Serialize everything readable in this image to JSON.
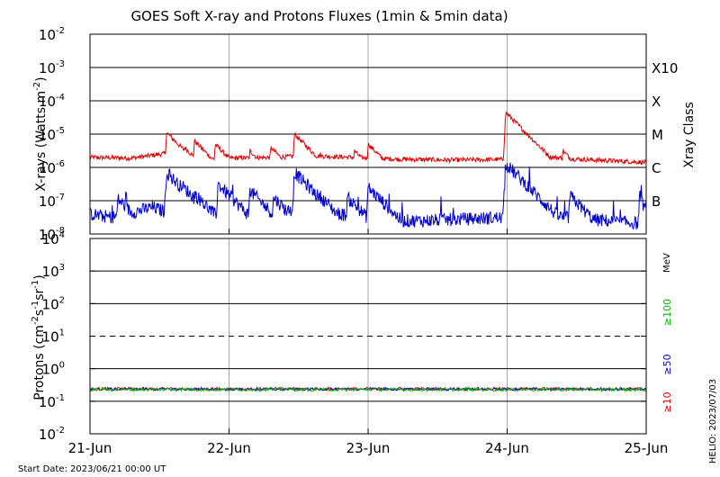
{
  "title": "GOES Soft X-ray and Protons Fluxes   (1min & 5min data)",
  "footer_start": "Start Date: 2023/06/21 00:00 UT",
  "footer_helio": "HELIO: 2023/07/03",
  "colors": {
    "red": "#dd0000",
    "blue": "#0000cc",
    "green": "#00bb00",
    "grid": "#aaaaaa"
  },
  "chart_data": [
    {
      "type": "line",
      "name": "xrays",
      "ylabel_pre": "X-rays (Watts m",
      "ylabel_sup": "-2",
      "ylabel_post": ")",
      "y_scale": "log",
      "ylim_exp": [
        -8,
        -2
      ],
      "y_ticks": [
        {
          "base": "10",
          "exp": "-8"
        },
        {
          "base": "10",
          "exp": "-7"
        },
        {
          "base": "10",
          "exp": "-6"
        },
        {
          "base": "10",
          "exp": "-5"
        },
        {
          "base": "10",
          "exp": "-4"
        },
        {
          "base": "10",
          "exp": "-3"
        },
        {
          "base": "10",
          "exp": "-2"
        }
      ],
      "right_label": "Xray Class",
      "classes": [
        {
          "label": "B",
          "exp": -7
        },
        {
          "label": "C",
          "exp": -6
        },
        {
          "label": "M",
          "exp": -5
        },
        {
          "label": "X",
          "exp": -4
        },
        {
          "label": "X10",
          "exp": -3
        }
      ],
      "series": [
        {
          "color": "red",
          "baseline": [
            [
              0,
              -5.7
            ],
            [
              0.3,
              -5.72
            ],
            [
              0.6,
              -5.55
            ],
            [
              0.85,
              -5.75
            ],
            [
              1.0,
              -5.72
            ],
            [
              1.3,
              -5.7
            ],
            [
              1.6,
              -5.65
            ],
            [
              1.9,
              -5.7
            ],
            [
              2.2,
              -5.75
            ],
            [
              2.6,
              -5.78
            ],
            [
              2.99,
              -5.76
            ],
            [
              3.0,
              -5.5
            ],
            [
              3.2,
              -5.65
            ],
            [
              3.5,
              -5.75
            ],
            [
              4.0,
              -5.85
            ],
            [
              4.5,
              -5.82
            ],
            [
              4.8,
              -5.8
            ],
            [
              5.0,
              -5.85
            ]
          ],
          "flares": [
            [
              0.55,
              -4.95
            ],
            [
              0.68,
              -5.4
            ],
            [
              0.75,
              -5.2
            ],
            [
              0.9,
              -5.3
            ],
            [
              1.15,
              -5.5
            ],
            [
              1.3,
              -5.4
            ],
            [
              1.47,
              -5.0
            ],
            [
              1.55,
              -5.35
            ],
            [
              1.65,
              -5.6
            ],
            [
              1.9,
              -5.5
            ],
            [
              2.0,
              -5.3
            ],
            [
              2.99,
              -4.35
            ],
            [
              3.12,
              -5.4
            ],
            [
              3.4,
              -5.5
            ],
            [
              4.2,
              -5.6
            ],
            [
              4.45,
              -5.5
            ],
            [
              4.53,
              -4.95
            ],
            [
              4.72,
              -5.3
            ],
            [
              4.85,
              -5.4
            ]
          ],
          "noise": 0.07
        },
        {
          "color": "blue",
          "baseline": [
            [
              0,
              -7.4
            ],
            [
              0.15,
              -7.5
            ],
            [
              0.35,
              -7.3
            ],
            [
              0.45,
              -7.2
            ],
            [
              0.7,
              -7.55
            ],
            [
              1.0,
              -7.6
            ],
            [
              1.2,
              -7.5
            ],
            [
              1.4,
              -7.3
            ],
            [
              1.6,
              -7.2
            ],
            [
              1.8,
              -7.4
            ],
            [
              2.1,
              -7.6
            ],
            [
              2.4,
              -7.6
            ],
            [
              2.7,
              -7.55
            ],
            [
              2.99,
              -7.5
            ],
            [
              3.0,
              -6.8
            ],
            [
              3.2,
              -7.2
            ],
            [
              3.4,
              -7.5
            ],
            [
              3.7,
              -7.6
            ],
            [
              4.0,
              -7.7
            ],
            [
              4.3,
              -7.6
            ],
            [
              4.5,
              -7.5
            ],
            [
              4.8,
              -7.4
            ],
            [
              5.0,
              -7.45
            ]
          ],
          "flares": [
            [
              0.2,
              -6.95
            ],
            [
              0.55,
              -6.15
            ],
            [
              0.65,
              -6.5
            ],
            [
              0.75,
              -6.8
            ],
            [
              0.92,
              -6.5
            ],
            [
              1.15,
              -6.7
            ],
            [
              1.32,
              -6.9
            ],
            [
              1.47,
              -6.15
            ],
            [
              1.55,
              -6.5
            ],
            [
              1.65,
              -6.85
            ],
            [
              1.85,
              -6.9
            ],
            [
              2.0,
              -6.6
            ],
            [
              2.99,
              -5.9
            ],
            [
              3.12,
              -6.9
            ],
            [
              3.45,
              -6.85
            ],
            [
              3.95,
              -7.0
            ],
            [
              4.25,
              -6.8
            ],
            [
              4.4,
              -6.5
            ],
            [
              4.53,
              -6.2
            ],
            [
              4.65,
              -6.9
            ],
            [
              4.85,
              -6.8
            ]
          ],
          "noise": 0.2
        }
      ]
    },
    {
      "type": "line",
      "name": "protons",
      "ylabel_pre": "Protons (cm",
      "ylabel_sup1": "-2",
      "ylabel_mid": "s",
      "ylabel_sup2": "-1",
      "ylabel_mid2": "sr",
      "ylabel_sup3": "-1",
      "ylabel_post": ")",
      "y_scale": "log",
      "ylim_exp": [
        -2,
        4
      ],
      "y_ticks": [
        {
          "base": "10",
          "exp": "-2"
        },
        {
          "base": "10",
          "exp": "-1"
        },
        {
          "base": "10",
          "exp": "0"
        },
        {
          "base": "10",
          "exp": "1"
        },
        {
          "base": "10",
          "exp": "2"
        },
        {
          "base": "10",
          "exp": "3"
        },
        {
          "base": "10",
          "exp": "4"
        }
      ],
      "threshold_exp": 1,
      "unit_label": "MeV",
      "energy_labels": [
        {
          "text": "≥100",
          "color": "green"
        },
        {
          "text": "≥50",
          "color": "blue"
        },
        {
          "text": "≥10",
          "color": "red"
        }
      ],
      "series": [
        {
          "color": "red",
          "level": -0.62,
          "noise": 0.05
        },
        {
          "color": "blue",
          "level": -0.63,
          "noise": 0.04
        },
        {
          "color": "green",
          "level": -0.64,
          "noise": 0.05
        }
      ]
    }
  ],
  "x_axis": {
    "ticks": [
      "21-Jun",
      "22-Jun",
      "23-Jun",
      "24-Jun",
      "25-Jun"
    ],
    "days": [
      0,
      1,
      2,
      3,
      4
    ]
  }
}
